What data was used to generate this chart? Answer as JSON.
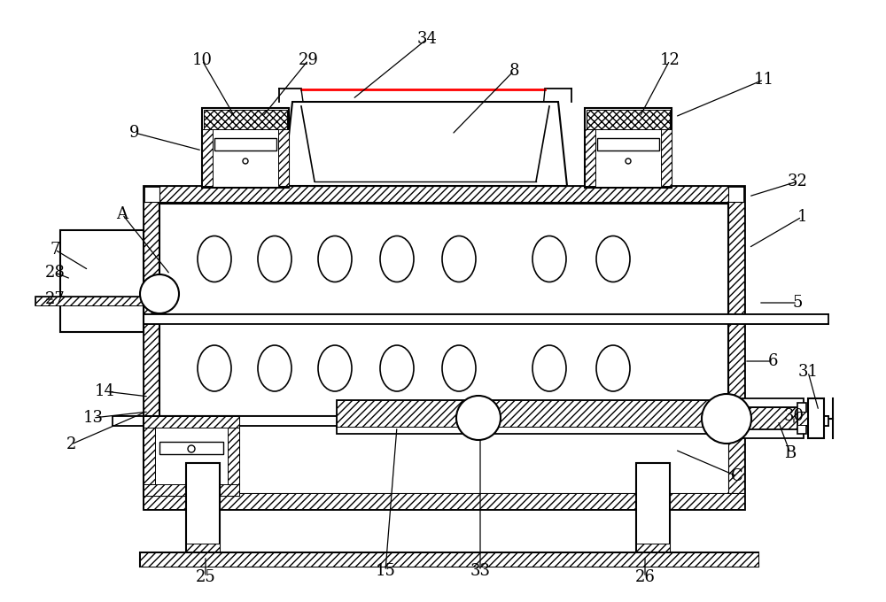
{
  "bg_color": "#ffffff",
  "fig_width": 10.0,
  "fig_height": 6.8,
  "dpi": 100,
  "annotations": [
    [
      "1",
      905,
      435,
      845,
      400
    ],
    [
      "2",
      80,
      178,
      165,
      215
    ],
    [
      "5",
      900,
      338,
      856,
      338
    ],
    [
      "6",
      872,
      272,
      840,
      272
    ],
    [
      "7",
      62,
      398,
      100,
      375
    ],
    [
      "8",
      580,
      600,
      510,
      528
    ],
    [
      "9",
      152,
      530,
      228,
      510
    ],
    [
      "10",
      228,
      612,
      265,
      548
    ],
    [
      "11",
      862,
      590,
      762,
      548
    ],
    [
      "12",
      756,
      612,
      722,
      548
    ],
    [
      "13",
      105,
      208,
      168,
      215
    ],
    [
      "14",
      118,
      238,
      168,
      232
    ],
    [
      "15",
      435,
      35,
      448,
      198
    ],
    [
      "25",
      232,
      28,
      232,
      52
    ],
    [
      "26",
      728,
      28,
      728,
      52
    ],
    [
      "27",
      62,
      342,
      50,
      342
    ],
    [
      "28",
      62,
      372,
      80,
      365
    ],
    [
      "29",
      348,
      612,
      296,
      548
    ],
    [
      "30",
      896,
      210,
      896,
      200
    ],
    [
      "31",
      912,
      260,
      924,
      216
    ],
    [
      "32",
      900,
      475,
      845,
      458
    ],
    [
      "33",
      542,
      35,
      542,
      198
    ],
    [
      "34",
      482,
      636,
      398,
      568
    ],
    [
      "A",
      138,
      438,
      192,
      370
    ],
    [
      "B",
      892,
      168,
      878,
      205
    ],
    [
      "C",
      832,
      142,
      762,
      172
    ]
  ]
}
